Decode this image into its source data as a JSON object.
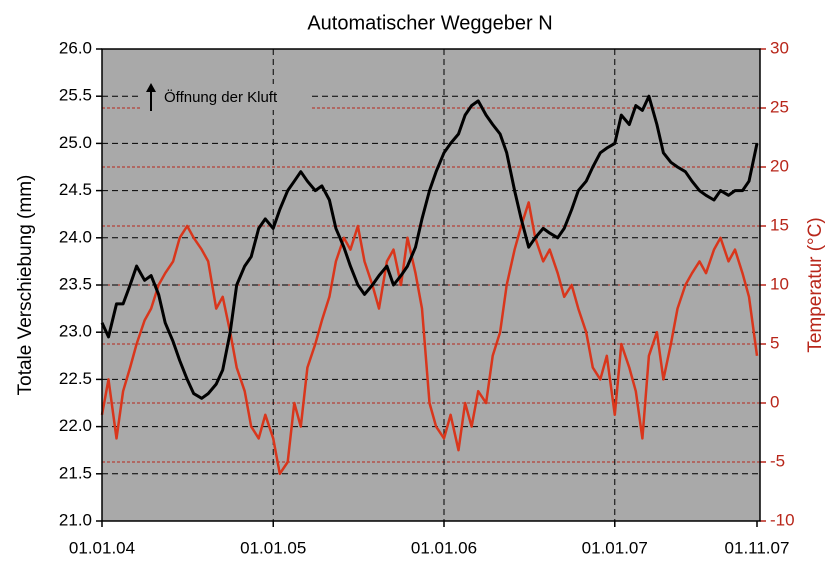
{
  "chart_data": {
    "type": "line",
    "title": "Automatischer Weggeber N",
    "ylabel": "Totale Verschiebung (mm)",
    "y2label": "Temperatur (°C)",
    "annotation": "Öffnung der Kluft",
    "x": [
      "2004-01-01",
      "2004-01-15",
      "2004-02-01",
      "2004-02-15",
      "2004-03-01",
      "2004-03-15",
      "2004-04-01",
      "2004-04-15",
      "2004-05-01",
      "2004-05-15",
      "2004-06-01",
      "2004-06-15",
      "2004-07-01",
      "2004-07-15",
      "2004-08-01",
      "2004-08-15",
      "2004-09-01",
      "2004-09-15",
      "2004-10-01",
      "2004-10-15",
      "2004-11-01",
      "2004-11-15",
      "2004-12-01",
      "2004-12-15",
      "2005-01-01",
      "2005-01-15",
      "2005-02-01",
      "2005-02-15",
      "2005-03-01",
      "2005-03-15",
      "2005-04-01",
      "2005-04-15",
      "2005-05-01",
      "2005-05-15",
      "2005-06-01",
      "2005-06-15",
      "2005-07-01",
      "2005-07-15",
      "2005-08-01",
      "2005-08-15",
      "2005-09-01",
      "2005-09-15",
      "2005-10-01",
      "2005-10-15",
      "2005-11-01",
      "2005-11-15",
      "2005-12-01",
      "2005-12-15",
      "2006-01-01",
      "2006-01-15",
      "2006-02-01",
      "2006-02-15",
      "2006-03-01",
      "2006-03-15",
      "2006-04-01",
      "2006-04-15",
      "2006-05-01",
      "2006-05-15",
      "2006-06-01",
      "2006-06-15",
      "2006-07-01",
      "2006-07-15",
      "2006-08-01",
      "2006-08-15",
      "2006-09-01",
      "2006-09-15",
      "2006-10-01",
      "2006-10-15",
      "2006-11-01",
      "2006-11-15",
      "2006-12-01",
      "2006-12-15",
      "2007-01-01",
      "2007-01-15",
      "2007-02-01",
      "2007-02-15",
      "2007-03-01",
      "2007-03-15",
      "2007-04-01",
      "2007-04-15",
      "2007-05-01",
      "2007-05-15",
      "2007-06-01",
      "2007-06-15",
      "2007-07-01",
      "2007-07-15",
      "2007-08-01",
      "2007-08-15",
      "2007-09-01",
      "2007-09-15",
      "2007-10-01",
      "2007-10-15",
      "2007-11-01"
    ],
    "series": [
      {
        "color": "#000000",
        "values": [
          23.1,
          22.95,
          23.3,
          23.3,
          23.5,
          23.7,
          23.55,
          23.6,
          23.4,
          23.1,
          22.9,
          22.7,
          22.5,
          22.35,
          22.3,
          22.35,
          22.45,
          22.6,
          23.0,
          23.5,
          23.7,
          23.8,
          24.1,
          24.2,
          24.1,
          24.3,
          24.5,
          24.6,
          24.7,
          24.6,
          24.5,
          24.55,
          24.4,
          24.1,
          23.9,
          23.7,
          23.5,
          23.4,
          23.5,
          23.6,
          23.7,
          23.5,
          23.6,
          23.7,
          23.9,
          24.2,
          24.5,
          24.7,
          24.9,
          25.0,
          25.1,
          25.3,
          25.4,
          25.45,
          25.3,
          25.2,
          25.1,
          24.9,
          24.5,
          24.2,
          23.9,
          24.0,
          24.1,
          24.05,
          24.0,
          24.1,
          24.3,
          24.5,
          24.6,
          24.75,
          24.9,
          24.95,
          25.0,
          25.3,
          25.2,
          25.4,
          25.35,
          25.5,
          25.2,
          24.9,
          24.8,
          24.75,
          24.7,
          24.6,
          24.5,
          24.45,
          24.4,
          24.5,
          24.45,
          24.5,
          24.5,
          24.6,
          25.0
        ]
      },
      {
        "color": "#d9361c",
        "axis": "y2",
        "values": [
          -1,
          2,
          -3,
          1,
          3,
          5,
          7,
          8,
          10,
          11,
          12,
          14,
          15,
          14,
          13,
          12,
          8,
          9,
          6,
          3,
          1,
          -2,
          -3,
          -1,
          -3,
          -6,
          -5,
          0,
          -2,
          3,
          5,
          7,
          9,
          12,
          14,
          13,
          15,
          12,
          10,
          8,
          12,
          13,
          10,
          14,
          11,
          8,
          0,
          -2,
          -3,
          -1,
          -4,
          0,
          -2,
          1,
          0,
          4,
          6,
          10,
          13,
          15,
          17,
          14,
          12,
          13,
          11,
          9,
          10,
          8,
          6,
          3,
          2,
          4,
          -1,
          5,
          3,
          1,
          -3,
          4,
          6,
          2,
          5,
          8,
          10,
          11,
          12,
          11,
          13,
          14,
          12,
          13,
          11,
          9,
          4
        ]
      }
    ],
    "xlim": [
      "2004-01-01",
      "2007-11-01"
    ],
    "xticks": [
      {
        "value": "2004-01-01",
        "label": "01.01.04"
      },
      {
        "value": "2005-01-01",
        "label": "01.01.05"
      },
      {
        "value": "2006-01-01",
        "label": "01.01.06"
      },
      {
        "value": "2007-01-01",
        "label": "01.01.07"
      },
      {
        "value": "2007-11-01",
        "label": "01.11.07"
      }
    ],
    "ylim": [
      21,
      26
    ],
    "yticks": [
      {
        "value": 21,
        "label": "21.0"
      },
      {
        "value": 21.5,
        "label": "21.5"
      },
      {
        "value": 22,
        "label": "22.0"
      },
      {
        "value": 22.5,
        "label": "22.5"
      },
      {
        "value": 23,
        "label": "23.0"
      },
      {
        "value": 23.5,
        "label": "23.5"
      },
      {
        "value": 24,
        "label": "24.0"
      },
      {
        "value": 24.5,
        "label": "24.5"
      },
      {
        "value": 25,
        "label": "25.0"
      },
      {
        "value": 25.5,
        "label": "25.5"
      },
      {
        "value": 26,
        "label": "26.0"
      }
    ],
    "y2lim": [
      -10,
      30
    ],
    "y2ticks": [
      -10,
      -5,
      0,
      5,
      10,
      15,
      20,
      25,
      30
    ],
    "y2color": "#b8261a",
    "grid": true
  }
}
